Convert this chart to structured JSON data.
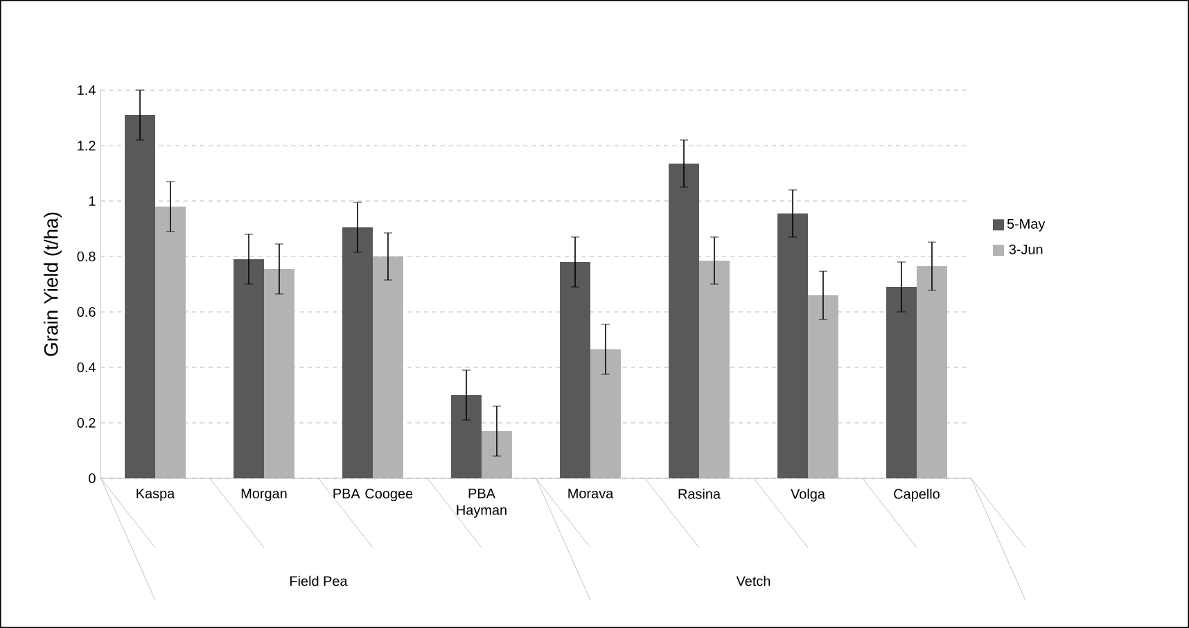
{
  "chart_data": {
    "type": "bar",
    "ylabel": "Grain Yield (t/ha)",
    "categories": [
      "Kaspa",
      "Morgan",
      "PBA Coogee",
      "PBA Hayman",
      "Morava",
      "Rasina",
      "Volga",
      "Capello"
    ],
    "series": [
      {
        "name": "5-May",
        "color": "#595959",
        "values": [
          1.31,
          0.79,
          0.905,
          0.3,
          0.78,
          1.135,
          0.955,
          0.69
        ],
        "errors": [
          0.09,
          0.09,
          0.09,
          0.09,
          0.09,
          0.085,
          0.085,
          0.09
        ]
      },
      {
        "name": "3-Jun",
        "color": "#b3b3b3",
        "values": [
          0.98,
          0.755,
          0.8,
          0.17,
          0.465,
          0.785,
          0.66,
          0.765
        ],
        "errors": [
          0.09,
          0.09,
          0.085,
          0.09,
          0.09,
          0.085,
          0.087,
          0.087
        ]
      }
    ],
    "annotations": [
      "Field Pea",
      "Vetch"
    ],
    "ylim": [
      0,
      1.4
    ],
    "yticks": [
      0,
      0.2,
      0.4,
      0.6,
      0.8,
      1,
      1.2,
      1.4
    ],
    "grid": "y",
    "legend": "right"
  }
}
